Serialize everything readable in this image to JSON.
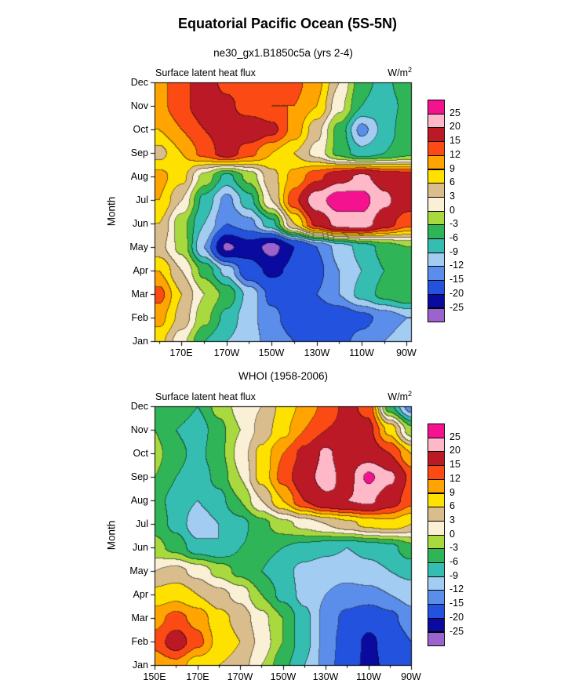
{
  "title": "Equatorial Pacific Ocean (5S-5N)",
  "colorbar": {
    "levels": [
      -25,
      -20,
      -15,
      -12,
      -9,
      -6,
      -3,
      0,
      3,
      6,
      9,
      12,
      15,
      20,
      25
    ],
    "labels_top_to_bottom": [
      "25",
      "20",
      "15",
      "12",
      "9",
      "6",
      "3",
      "0",
      "-3",
      "-6",
      "-9",
      "-12",
      "-15",
      "-20",
      "-25"
    ],
    "palette_low_to_high": [
      "#9C62CE",
      "#0A0AA0",
      "#2353DE",
      "#5B8DEA",
      "#A3CCF2",
      "#35BDB2",
      "#2FB457",
      "#A8D93F",
      "#FAF0D6",
      "#D9BD8C",
      "#FFE100",
      "#FFA400",
      "#FC4A14",
      "#BB1926",
      "#FFB8C8",
      "#F5128F"
    ]
  },
  "chart_data": [
    {
      "type": "heatmap",
      "panel": "model",
      "subtitle": "ne30_gx1.B1850c5a (yrs 2-4)",
      "field_title": "Surface latent heat flux",
      "units_base": "W/m",
      "units_exp": "2",
      "ylabel": "Month",
      "y_categories": [
        "Jan",
        "Feb",
        "Mar",
        "Apr",
        "May",
        "Jun",
        "Jul",
        "Aug",
        "Sep",
        "Oct",
        "Nov",
        "Dec"
      ],
      "y_order": "Jan at bottom edge, Dec at top edge",
      "x_domain_degE": [
        158,
        272
      ],
      "x_points_degE": [
        160,
        170,
        180,
        190,
        200,
        210,
        220,
        230,
        240,
        250,
        260,
        270
      ],
      "x_ticks": [
        {
          "degE": 170,
          "label": "170E"
        },
        {
          "degE": 190,
          "label": "170W"
        },
        {
          "degE": 210,
          "label": "150W"
        },
        {
          "degE": 230,
          "label": "130W"
        },
        {
          "degE": 250,
          "label": "110W"
        },
        {
          "degE": 270,
          "label": "90W"
        }
      ],
      "values_w_m2": {
        "Jan": [
          7,
          1,
          -6,
          -9,
          -11,
          -13,
          -15,
          -16,
          -16,
          -14,
          -12,
          -10
        ],
        "Feb": [
          10,
          5,
          -2,
          -7,
          -11,
          -14,
          -17,
          -18,
          -18,
          -16,
          -14,
          -12
        ],
        "Mar": [
          13,
          6,
          0,
          -4,
          -10,
          -16,
          -17,
          -15,
          -12,
          -8,
          -5,
          -3
        ],
        "Apr": [
          9,
          3,
          -4,
          -10,
          -18,
          -21,
          -19,
          -16,
          -12,
          -9,
          -6,
          -4
        ],
        "May": [
          4,
          -1,
          -12,
          -26,
          -22,
          -27,
          -20,
          -15,
          -11,
          -8,
          -5,
          -3
        ],
        "Jun": [
          6,
          -2,
          -9,
          -15,
          -13,
          -7,
          6,
          16,
          22,
          23,
          17,
          13
        ],
        "Jul": [
          9,
          3,
          -7,
          -13,
          -7,
          3,
          14,
          23,
          28,
          27,
          21,
          17
        ],
        "Aug": [
          10,
          7,
          -1,
          -7,
          -2,
          5,
          10,
          14,
          18,
          21,
          18,
          17
        ],
        "Sep": [
          5,
          9,
          13,
          17,
          13,
          9,
          6,
          2,
          -4,
          -8,
          -6,
          -4
        ],
        "Oct": [
          9,
          12,
          15,
          17,
          18,
          16,
          11,
          4,
          -4,
          -13,
          -8,
          -4
        ],
        "Nov": [
          11,
          14,
          17,
          16,
          13,
          12,
          12,
          9,
          1,
          -6,
          -8,
          -5
        ],
        "Dec": [
          11,
          14,
          17,
          14,
          12,
          13,
          13,
          10,
          3,
          -5,
          -7,
          -4
        ]
      }
    },
    {
      "type": "heatmap",
      "panel": "observations",
      "subtitle": "WHOI (1958-2006)",
      "field_title": "Surface latent heat flux",
      "units_base": "W/m",
      "units_exp": "2",
      "ylabel": "Month",
      "y_categories": [
        "Jan",
        "Feb",
        "Mar",
        "Apr",
        "May",
        "Jun",
        "Jul",
        "Aug",
        "Sep",
        "Oct",
        "Nov",
        "Dec"
      ],
      "y_order": "Jan at bottom edge, Dec at top edge",
      "x_domain_degE": [
        150,
        270
      ],
      "x_points_degE": [
        150,
        160,
        170,
        180,
        190,
        200,
        210,
        220,
        230,
        240,
        250,
        260,
        270
      ],
      "x_ticks": [
        {
          "degE": 150,
          "label": "150E"
        },
        {
          "degE": 170,
          "label": "170E"
        },
        {
          "degE": 190,
          "label": "170W"
        },
        {
          "degE": 210,
          "label": "150W"
        },
        {
          "degE": 230,
          "label": "130W"
        },
        {
          "degE": 250,
          "label": "110W"
        },
        {
          "degE": 270,
          "label": "90W"
        }
      ],
      "values_w_m2": {
        "Jan": [
          10,
          11,
          7,
          6,
          5,
          0,
          -5,
          -9,
          -13,
          -18,
          -21,
          -19,
          -16
        ],
        "Feb": [
          13,
          17,
          13,
          8,
          6,
          2,
          -3,
          -8,
          -13,
          -17,
          -21,
          -18,
          -15
        ],
        "Mar": [
          11,
          13,
          11,
          7,
          5,
          1,
          -3,
          -8,
          -13,
          -16,
          -18,
          -16,
          -13
        ],
        "Apr": [
          7,
          8,
          6,
          4,
          2,
          -3,
          -7,
          -10,
          -12,
          -13,
          -13,
          -12,
          -11
        ],
        "May": [
          3,
          4,
          2,
          -1,
          -4,
          -6,
          -8,
          -10,
          -11,
          -11,
          -10,
          -9,
          -8
        ],
        "Jun": [
          -2,
          -4,
          -8,
          -9,
          -6,
          -5,
          -6,
          -7,
          -8,
          -9,
          -8,
          -7,
          -4
        ],
        "Jul": [
          -4,
          -7,
          -11,
          -9,
          -7,
          -4,
          -1,
          1,
          3,
          5,
          7,
          8,
          6
        ],
        "Aug": [
          -5,
          -7,
          -9,
          -7,
          -3,
          3,
          9,
          15,
          19,
          20,
          21,
          17,
          13
        ],
        "Sep": [
          -3,
          -6,
          -8,
          -5,
          0,
          7,
          13,
          18,
          22,
          18,
          26,
          21,
          14
        ],
        "Oct": [
          -2,
          -5,
          -7,
          -4,
          1,
          7,
          12,
          16,
          21,
          17,
          17,
          15,
          9
        ],
        "Nov": [
          -3,
          -6,
          -8,
          -4,
          0,
          4,
          8,
          12,
          15,
          16,
          16,
          8,
          -2
        ],
        "Dec": [
          -3,
          -3,
          -6,
          -2,
          1,
          3,
          7,
          10,
          13,
          16,
          14,
          -5,
          -14
        ]
      }
    }
  ]
}
